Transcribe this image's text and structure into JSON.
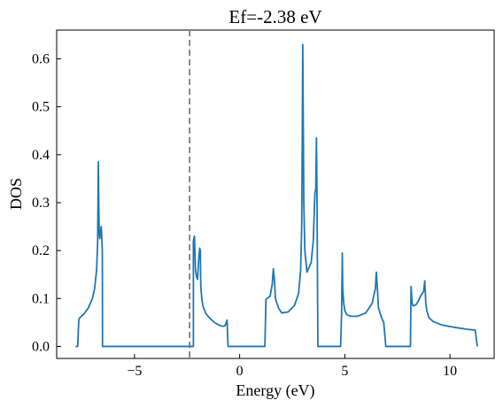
{
  "chart_data": {
    "type": "line",
    "title": "Ef=-2.38 eV",
    "xlabel": "Energy (eV)",
    "ylabel": "DOS",
    "xlim": [
      -8.7,
      12.1
    ],
    "ylim": [
      -0.025,
      0.66
    ],
    "xticks": [
      -5,
      0,
      5,
      10
    ],
    "xtick_labels": [
      "−5",
      "0",
      "5",
      "10"
    ],
    "yticks": [
      0.0,
      0.1,
      0.2,
      0.3,
      0.4,
      0.5,
      0.6
    ],
    "ytick_labels": [
      "0.0",
      "0.1",
      "0.2",
      "0.3",
      "0.4",
      "0.5",
      "0.6"
    ],
    "grid": false,
    "fermi_level": -2.38,
    "colors": {
      "line": "#1f77b4",
      "fermi_line": "#7f7f7f",
      "axes": "#000000"
    },
    "series": [
      {
        "x": [
          -7.8,
          -7.7,
          -7.65,
          -7.6,
          -7.4,
          -7.2,
          -7.0,
          -6.9,
          -6.8,
          -6.75,
          -6.72,
          -6.7,
          -6.68,
          -6.65,
          -6.6,
          -6.58,
          -6.55,
          -6.53,
          -6.52,
          -6.5,
          -6.48,
          -6.45,
          -6.3,
          -4.0,
          -2.3,
          -2.2,
          -2.2,
          -2.15,
          -2.1,
          -2.05,
          -2.0,
          -1.95,
          -1.9,
          -1.87,
          -1.85,
          -1.83,
          -1.8,
          -1.75,
          -1.6,
          -1.4,
          -1.2,
          -1.0,
          -0.8,
          -0.7,
          -0.65,
          -0.6,
          -0.55,
          -0.5,
          1.2,
          1.25,
          1.3,
          1.45,
          1.55,
          1.6,
          1.65,
          1.7,
          1.85,
          2.0,
          2.3,
          2.6,
          2.8,
          2.9,
          2.95,
          2.98,
          3.0,
          3.02,
          3.05,
          3.1,
          3.2,
          3.4,
          3.5,
          3.58,
          3.62,
          3.65,
          3.68,
          3.7,
          3.72,
          3.75,
          3.8,
          4.5,
          4.8,
          4.85,
          4.88,
          4.9,
          4.95,
          5.0,
          5.1,
          5.3,
          5.6,
          6.0,
          6.3,
          6.45,
          6.5,
          6.55,
          6.6,
          6.75,
          6.85,
          6.95,
          8.1,
          8.12,
          8.15,
          8.2,
          8.25,
          8.3,
          8.4,
          8.5,
          8.6,
          8.75,
          8.8,
          8.83,
          8.85,
          8.9,
          9.0,
          9.2,
          9.6,
          10.2,
          10.8,
          11.2,
          11.3
        ],
        "y": [
          0.0,
          0.0,
          0.055,
          0.06,
          0.068,
          0.08,
          0.1,
          0.12,
          0.16,
          0.22,
          0.385,
          0.3,
          0.24,
          0.225,
          0.245,
          0.25,
          0.22,
          0.2,
          0.0,
          0.0,
          0.0,
          0.0,
          0.0,
          0.0,
          0.0,
          0.0,
          0.22,
          0.23,
          0.16,
          0.145,
          0.14,
          0.18,
          0.205,
          0.2,
          0.13,
          0.115,
          0.1,
          0.085,
          0.068,
          0.058,
          0.05,
          0.045,
          0.042,
          0.043,
          0.048,
          0.055,
          0.0,
          0.0,
          0.0,
          0.098,
          0.1,
          0.105,
          0.13,
          0.162,
          0.14,
          0.1,
          0.08,
          0.07,
          0.072,
          0.085,
          0.11,
          0.16,
          0.25,
          0.45,
          0.63,
          0.5,
          0.3,
          0.2,
          0.155,
          0.175,
          0.22,
          0.32,
          0.33,
          0.435,
          0.3,
          0.14,
          0.0,
          0.0,
          0.0,
          0.0,
          0.0,
          0.075,
          0.195,
          0.12,
          0.09,
          0.075,
          0.066,
          0.063,
          0.063,
          0.07,
          0.09,
          0.12,
          0.155,
          0.12,
          0.08,
          0.06,
          0.05,
          0.0,
          0.0,
          0.0,
          0.125,
          0.09,
          0.085,
          0.085,
          0.088,
          0.095,
          0.105,
          0.115,
          0.137,
          0.11,
          0.09,
          0.075,
          0.06,
          0.052,
          0.045,
          0.04,
          0.036,
          0.034,
          0.0
        ]
      }
    ]
  }
}
